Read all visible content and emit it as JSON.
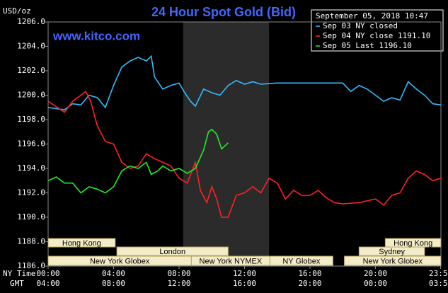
{
  "chart_data": {
    "type": "line",
    "title": "24 Hour Spot Gold (Bid)",
    "source": "www.kitco.com",
    "y_unit": "USD/oz",
    "timestamp": "September 05, 2018 10:47",
    "x_axis_names": [
      "NY Time",
      "GMT"
    ],
    "xlim": [
      0,
      24
    ],
    "xticks": [
      {
        "value": 0,
        "label": "00:00"
      },
      {
        "value": 4,
        "label": "04:00"
      },
      {
        "value": 8,
        "label": "08:00"
      },
      {
        "value": 12,
        "label": "12:00"
      },
      {
        "value": 16,
        "label": "16:00"
      },
      {
        "value": 20,
        "label": "20:00"
      },
      {
        "value": 23.98,
        "label": "23:59"
      }
    ],
    "xticks_gmt": [
      "04:00",
      "08:00",
      "12:00",
      "16:00",
      "20:00",
      "00:00",
      "03:59"
    ],
    "ylim": [
      1186,
      1206
    ],
    "yticks": [
      {
        "value": 1186,
        "label": "1186.0"
      },
      {
        "value": 1188,
        "label": "1188.0"
      },
      {
        "value": 1190,
        "label": "1190.0"
      },
      {
        "value": 1192,
        "label": "1192.0"
      },
      {
        "value": 1194,
        "label": "1194.0"
      },
      {
        "value": 1196,
        "label": "1196.0"
      },
      {
        "value": 1198,
        "label": "1198.0"
      },
      {
        "value": 1200,
        "label": "1200.0"
      },
      {
        "value": 1202,
        "label": "1202.0"
      },
      {
        "value": 1204,
        "label": "1204.0"
      },
      {
        "value": 1206,
        "label": "1206.0"
      }
    ],
    "highlight_range": [
      8.25,
      13.5
    ],
    "sessions": [
      {
        "label": "Hong Kong",
        "start": 0,
        "end": 4.1,
        "row": 0
      },
      {
        "label": "London",
        "start": 4.2,
        "end": 11,
        "row": 1
      },
      {
        "label": "New York Globex",
        "start": 0,
        "end": 8.75,
        "row": 2
      },
      {
        "label": "New York NYMEX",
        "start": 8.75,
        "end": 13.55,
        "row": 2
      },
      {
        "label": "NY Globex",
        "start": 13.55,
        "end": 17.4,
        "row": 2
      },
      {
        "label": "Sydney",
        "start": 19,
        "end": 23,
        "row": 1
      },
      {
        "label": "Hong Kong",
        "start": 20.6,
        "end": 24,
        "row": 0
      },
      {
        "label": "New York Globex",
        "start": 18.1,
        "end": 24,
        "row": 2
      }
    ],
    "series": [
      {
        "name": "Sep 03 NY closed",
        "color": "#33bbff",
        "x": [
          0,
          1,
          1.5,
          2,
          2.5,
          3,
          3.5,
          4,
          4.5,
          5,
          5.5,
          6,
          6.3,
          6.5,
          7,
          7.5,
          8,
          8.3,
          8.7,
          9,
          9.5,
          10,
          10.5,
          11,
          11.5,
          12,
          12.5,
          13,
          14,
          18,
          18.5,
          19,
          19.5,
          20,
          20.5,
          21,
          21.5,
          22,
          22.5,
          23,
          23.5,
          24
        ],
        "values": [
          1199.0,
          1198.8,
          1199.3,
          1199.2,
          1200.0,
          1199.8,
          1199.0,
          1200.8,
          1202.3,
          1202.8,
          1203.1,
          1202.8,
          1203.2,
          1201.5,
          1200.5,
          1200.8,
          1201.0,
          1200.3,
          1199.5,
          1199.1,
          1200.5,
          1200.2,
          1200.0,
          1200.8,
          1201.2,
          1200.9,
          1201.1,
          1200.9,
          1201.0,
          1201.0,
          1200.3,
          1200.8,
          1200.5,
          1200.0,
          1199.5,
          1199.8,
          1199.6,
          1201.1,
          1200.5,
          1200.0,
          1199.3,
          1199.2
        ]
      },
      {
        "name": "Sep 04 NY close 1191.10",
        "color": "#ff2222",
        "x": [
          0,
          1,
          1.5,
          2,
          2.3,
          2.6,
          3,
          3.5,
          4,
          4.5,
          5,
          5.5,
          6,
          6.5,
          7,
          7.5,
          8,
          8.5,
          9,
          9.3,
          9.7,
          10,
          10.3,
          10.6,
          11,
          11.5,
          12,
          12.5,
          13,
          13.5,
          14,
          14.5,
          15,
          15.5,
          16,
          16.5,
          17,
          17.5,
          18,
          19,
          20,
          20.5,
          21,
          21.5,
          22,
          22.5,
          23,
          23.5,
          24
        ],
        "values": [
          1199.5,
          1198.6,
          1199.5,
          1200.0,
          1200.3,
          1199.5,
          1197.5,
          1196.2,
          1196.0,
          1194.5,
          1194.0,
          1194.2,
          1195.2,
          1194.8,
          1194.5,
          1194.2,
          1193.2,
          1192.8,
          1194.5,
          1192.2,
          1191.2,
          1192.5,
          1191.5,
          1190.0,
          1190.0,
          1191.8,
          1192.0,
          1192.5,
          1192.0,
          1193.2,
          1192.8,
          1191.5,
          1192.2,
          1191.8,
          1191.8,
          1192.2,
          1191.6,
          1191.2,
          1191.1,
          1191.2,
          1191.5,
          1191.0,
          1191.8,
          1192.0,
          1193.2,
          1193.8,
          1193.5,
          1193.0,
          1193.2
        ]
      },
      {
        "name": "Sep 05 Last 1196.10",
        "color": "#22ee22",
        "x": [
          0,
          0.5,
          1,
          1.5,
          2,
          2.5,
          3,
          3.5,
          4,
          4.5,
          5,
          5.5,
          6,
          6.3,
          6.7,
          7,
          7.5,
          8,
          8.5,
          9,
          9.5,
          9.8,
          10,
          10.3,
          10.6,
          11
        ],
        "values": [
          1193.0,
          1193.3,
          1192.8,
          1192.8,
          1192.0,
          1192.5,
          1192.3,
          1192.0,
          1192.5,
          1193.8,
          1194.2,
          1194.0,
          1194.5,
          1193.5,
          1193.8,
          1194.2,
          1193.8,
          1194.0,
          1193.6,
          1194.0,
          1195.5,
          1197.0,
          1197.2,
          1196.8,
          1195.6,
          1196.1
        ]
      }
    ]
  }
}
